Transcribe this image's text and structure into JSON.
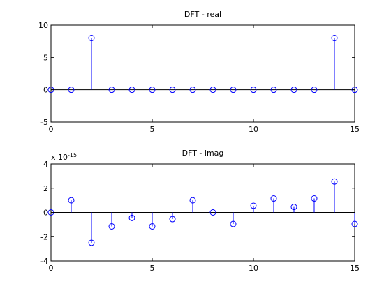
{
  "chart_data": [
    {
      "type": "stem",
      "title": "DFT - real",
      "xlabel": "",
      "ylabel": "",
      "xlim": [
        0,
        15
      ],
      "ylim": [
        -5,
        10
      ],
      "xticks": [
        "0",
        "5",
        "10",
        "15"
      ],
      "yticks": [
        "-5",
        "0",
        "5",
        "10"
      ],
      "exponent_label": "",
      "grid": false,
      "series": [
        {
          "x": [
            0,
            1,
            2,
            3,
            4,
            5,
            6,
            7,
            8,
            9,
            10,
            11,
            12,
            13,
            14,
            15
          ],
          "values": [
            0,
            0,
            8,
            0,
            0,
            0,
            0,
            0,
            0,
            0,
            0,
            0,
            0,
            0,
            8,
            0
          ]
        }
      ],
      "color": "#0000ff"
    },
    {
      "type": "stem",
      "title": "DFT - imag",
      "xlabel": "",
      "ylabel": "",
      "xlim": [
        0,
        15
      ],
      "ylim": [
        -4,
        4
      ],
      "xticks": [
        "0",
        "5",
        "10",
        "15"
      ],
      "yticks": [
        "-4",
        "-2",
        "0",
        "2",
        "4"
      ],
      "exponent_label": "x 10",
      "exponent_power": "-15",
      "grid": false,
      "series": [
        {
          "x": [
            0,
            1,
            2,
            3,
            4,
            5,
            6,
            7,
            8,
            9,
            10,
            11,
            12,
            13,
            14,
            15
          ],
          "values": [
            0,
            1.0,
            -2.5,
            -1.15,
            -0.45,
            -1.15,
            -0.55,
            1.0,
            0,
            -0.95,
            0.55,
            1.15,
            0.45,
            1.15,
            2.55,
            -0.95
          ]
        }
      ],
      "color": "#0000ff"
    }
  ]
}
